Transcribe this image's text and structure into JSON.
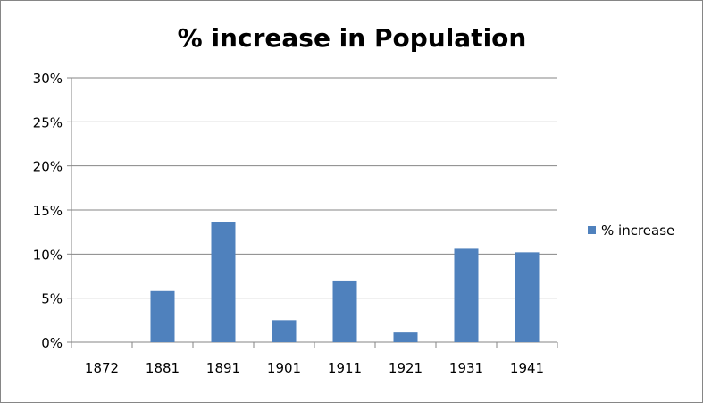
{
  "chart_data": {
    "type": "bar",
    "title": "% increase in Population",
    "xlabel": "",
    "ylabel": "",
    "categories": [
      "1872",
      "1881",
      "1891",
      "1901",
      "1911",
      "1921",
      "1931",
      "1941"
    ],
    "series": [
      {
        "name": "% increase",
        "values": [
          0,
          5.8,
          13.6,
          2.5,
          7.0,
          1.1,
          10.6,
          10.2
        ],
        "color": "#4F81BD"
      }
    ],
    "ylim": [
      0,
      30
    ],
    "yticks": [
      0,
      5,
      10,
      15,
      20,
      25,
      30
    ],
    "ytick_labels": [
      "0%",
      "5%",
      "10%",
      "15%",
      "20%",
      "25%",
      "30%"
    ],
    "grid": true,
    "legend_position": "right"
  }
}
